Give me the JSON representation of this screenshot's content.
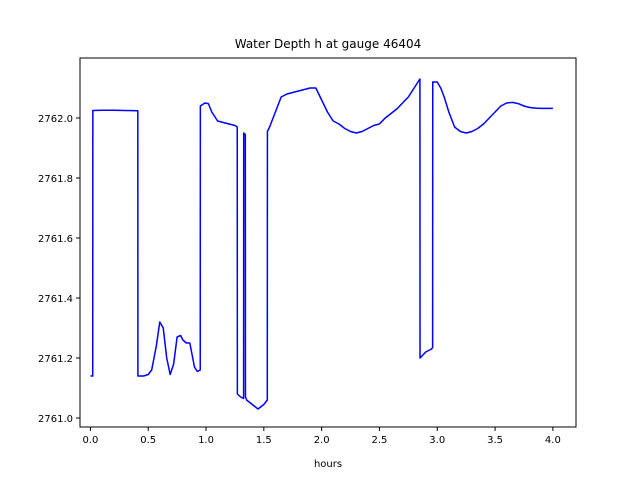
{
  "chart_data": {
    "type": "line",
    "title": "Water Depth h at gauge 46404",
    "xlabel": "hours",
    "ylabel": "",
    "xlim": [
      -0.09,
      4.2
    ],
    "ylim": [
      2760.97,
      2762.2
    ],
    "xticks": [
      0.0,
      0.5,
      1.0,
      1.5,
      2.0,
      2.5,
      3.0,
      3.5,
      4.0
    ],
    "xtick_labels": [
      "0.0",
      "0.5",
      "1.0",
      "1.5",
      "2.0",
      "2.5",
      "3.0",
      "3.5",
      "4.0"
    ],
    "yticks": [
      2761.0,
      2761.2,
      2761.4,
      2761.6,
      2761.8,
      2762.0
    ],
    "ytick_labels": [
      "2761.0",
      "2761.2",
      "2761.4",
      "2761.6",
      "2761.8",
      "2762.0"
    ],
    "grid": false,
    "series": [
      {
        "color": "#0000ff",
        "x": [
          0.0,
          0.02,
          0.021,
          0.1,
          0.2,
          0.3,
          0.41,
          0.411,
          0.46,
          0.5,
          0.53,
          0.57,
          0.6,
          0.63,
          0.66,
          0.69,
          0.72,
          0.75,
          0.78,
          0.8,
          0.83,
          0.86,
          0.885,
          0.9,
          0.925,
          0.95,
          0.951,
          0.99,
          1.02,
          1.05,
          1.1,
          1.15,
          1.2,
          1.25,
          1.27,
          1.271,
          1.3,
          1.325,
          1.326,
          1.34,
          1.341,
          1.35,
          1.351,
          1.4,
          1.45,
          1.5,
          1.53,
          1.531,
          1.55,
          1.6,
          1.65,
          1.7,
          1.75,
          1.8,
          1.85,
          1.9,
          1.95,
          2.0,
          2.05,
          2.1,
          2.15,
          2.2,
          2.25,
          2.3,
          2.35,
          2.4,
          2.45,
          2.5,
          2.55,
          2.6,
          2.65,
          2.7,
          2.75,
          2.8,
          2.85,
          2.851,
          2.9,
          2.95,
          2.96,
          2.961,
          3.0,
          3.03,
          3.06,
          3.1,
          3.15,
          3.2,
          3.25,
          3.3,
          3.35,
          3.4,
          3.45,
          3.5,
          3.55,
          3.6,
          3.65,
          3.7,
          3.75,
          3.8,
          3.85,
          3.9,
          3.95,
          4.0
        ],
        "y": [
          2761.14,
          2761.14,
          2762.025,
          2762.026,
          2762.026,
          2762.025,
          2762.024,
          2761.14,
          2761.14,
          2761.145,
          2761.16,
          2761.24,
          2761.32,
          2761.3,
          2761.2,
          2761.145,
          2761.18,
          2761.27,
          2761.275,
          2761.26,
          2761.25,
          2761.25,
          2761.2,
          2761.17,
          2761.155,
          2761.16,
          2762.04,
          2762.05,
          2762.048,
          2762.02,
          2761.99,
          2761.985,
          2761.98,
          2761.975,
          2761.97,
          2761.08,
          2761.07,
          2761.065,
          2761.95,
          2761.945,
          2761.07,
          2761.062,
          2761.06,
          2761.045,
          2761.03,
          2761.045,
          2761.06,
          2761.955,
          2761.97,
          2762.02,
          2762.07,
          2762.08,
          2762.085,
          2762.09,
          2762.095,
          2762.1,
          2762.1,
          2762.06,
          2762.02,
          2761.99,
          2761.98,
          2761.965,
          2761.955,
          2761.95,
          2761.955,
          2761.965,
          2761.975,
          2761.98,
          2762.0,
          2762.015,
          2762.03,
          2762.05,
          2762.07,
          2762.1,
          2762.13,
          2761.2,
          2761.22,
          2761.23,
          2761.235,
          2762.12,
          2762.12,
          2762.1,
          2762.07,
          2762.02,
          2761.97,
          2761.955,
          2761.95,
          2761.955,
          2761.965,
          2761.98,
          2762.0,
          2762.02,
          2762.04,
          2762.05,
          2762.052,
          2762.048,
          2762.04,
          2762.035,
          2762.033,
          2762.032,
          2762.032,
          2762.032
        ]
      }
    ]
  }
}
